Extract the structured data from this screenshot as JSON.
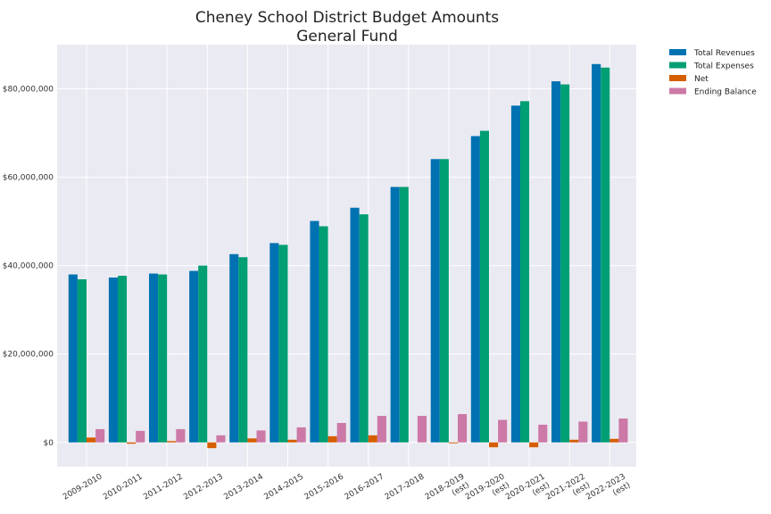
{
  "chart_data": {
    "type": "bar",
    "title": "Cheney School District Budget Amounts",
    "subtitle": "General Fund",
    "xlabel": "",
    "ylabel": "",
    "ylim": [
      -5500000,
      90000000
    ],
    "yticks": [
      0,
      20000000,
      40000000,
      60000000,
      80000000
    ],
    "ytick_labels": [
      "$0",
      "$20,000,000",
      "$40,000,000",
      "$60,000,000",
      "$80,000,000"
    ],
    "grid": true,
    "legend_position": "outside-top-right",
    "categories": [
      [
        "2009-2010"
      ],
      [
        "2010-2011"
      ],
      [
        "2011-2012"
      ],
      [
        "2012-2013"
      ],
      [
        "2013-2014"
      ],
      [
        "2014-2015"
      ],
      [
        "2015-2016"
      ],
      [
        "2016-2017"
      ],
      [
        "2017-2018"
      ],
      [
        "2018-2019",
        "(est)"
      ],
      [
        "2019-2020",
        "(est)"
      ],
      [
        "2020-2021",
        "(est)"
      ],
      [
        "2021-2022",
        "(est)"
      ],
      [
        "2022-2023",
        "(est)"
      ]
    ],
    "series": [
      {
        "name": "Total Revenues",
        "color": "#0072b2",
        "values": [
          38000000,
          37300000,
          38200000,
          38800000,
          42600000,
          45100000,
          50100000,
          53100000,
          57800000,
          64100000,
          69300000,
          76200000,
          81700000,
          85600000
        ]
      },
      {
        "name": "Total Expenses",
        "color": "#009e73",
        "values": [
          36900000,
          37700000,
          38000000,
          40000000,
          41900000,
          44700000,
          48900000,
          51600000,
          57800000,
          64100000,
          70500000,
          77200000,
          81000000,
          84800000
        ]
      },
      {
        "name": "Net",
        "color": "#d55e00",
        "values": [
          1100000,
          -300000,
          300000,
          -1300000,
          900000,
          600000,
          1400000,
          1600000,
          0,
          -200000,
          -1100000,
          -1100000,
          600000,
          800000
        ]
      },
      {
        "name": "Ending Balance",
        "color": "#cc79a7",
        "values": [
          3000000,
          2600000,
          3000000,
          1600000,
          2700000,
          3400000,
          4400000,
          6000000,
          6000000,
          6400000,
          5100000,
          4000000,
          4700000,
          5400000
        ]
      }
    ]
  },
  "colors": {
    "plot_background": "#eaeaf2",
    "grid": "#ffffff"
  }
}
